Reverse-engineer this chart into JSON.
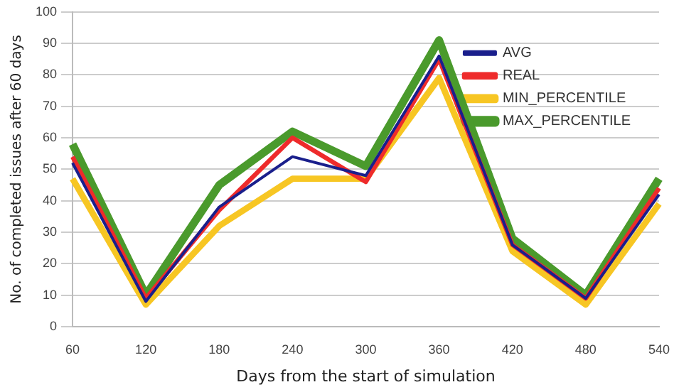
{
  "chart_data": {
    "type": "line",
    "xlabel": "Days from the start of simulation",
    "ylabel": "No. of completed issues after 60 days",
    "categories": [
      "60",
      "120",
      "180",
      "240",
      "300",
      "360",
      "420",
      "480",
      "540"
    ],
    "series": [
      {
        "name": "AVG",
        "color": "#1a1f8c",
        "values": [
          52,
          8,
          38,
          54,
          48,
          86,
          26,
          9,
          42
        ]
      },
      {
        "name": "REAL",
        "color": "#ee2b2b",
        "values": [
          54,
          9,
          37,
          60,
          46,
          85,
          26,
          9,
          44
        ]
      },
      {
        "name": "MIN_PERCENTILE",
        "color": "#f7c623",
        "values": [
          47,
          7,
          32,
          47,
          47,
          79,
          24,
          7,
          39
        ]
      },
      {
        "name": "MAX_PERCENTILE",
        "color": "#4a9a2c",
        "values": [
          58,
          10,
          45,
          62,
          51,
          91,
          28,
          10,
          47
        ]
      }
    ],
    "ylim": [
      0,
      100
    ],
    "yticks": [
      0,
      10,
      20,
      30,
      40,
      50,
      60,
      70,
      80,
      90,
      100
    ],
    "grid": "y",
    "legend": "top right",
    "marker": "none",
    "line_style": "solid"
  }
}
